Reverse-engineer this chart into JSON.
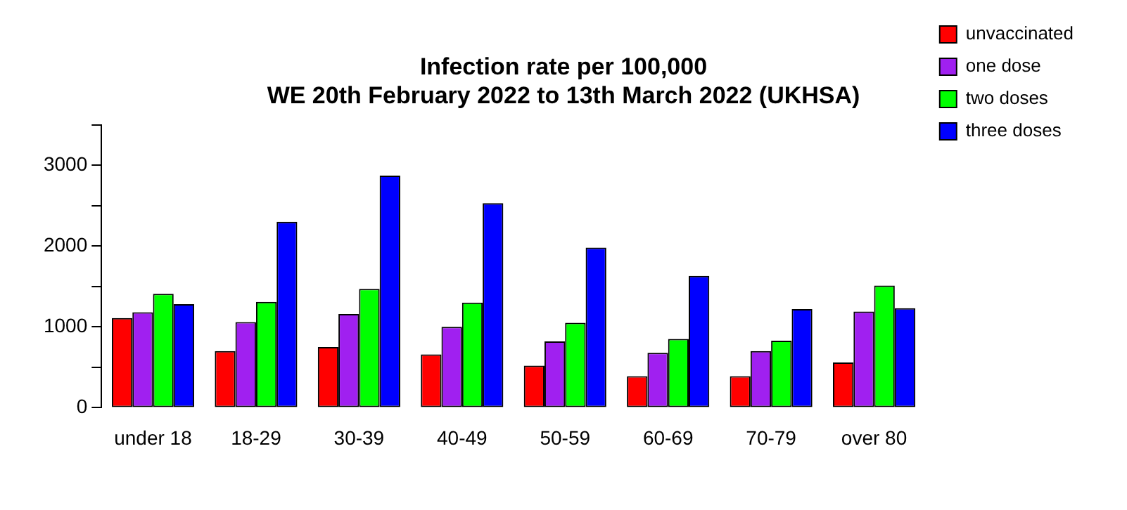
{
  "chart_data": {
    "type": "bar",
    "title": [
      "Infection rate per 100,000",
      "WE 20th February 2022 to 13th March 2022 (UKHSA)"
    ],
    "categories": [
      "under 18",
      "18-29",
      "30-39",
      "40-49",
      "50-59",
      "60-69",
      "70-79",
      "over 80"
    ],
    "series": [
      {
        "name": "unvaccinated",
        "color": "#ff0000",
        "values": [
          1110,
          700,
          750,
          660,
          520,
          390,
          390,
          560
        ]
      },
      {
        "name": "one dose",
        "color": "#a020f0",
        "values": [
          1180,
          1060,
          1160,
          1000,
          820,
          680,
          700,
          1190
        ]
      },
      {
        "name": "two doses",
        "color": "#00ff00",
        "values": [
          1410,
          1310,
          1470,
          1300,
          1050,
          850,
          830,
          1510
        ]
      },
      {
        "name": "three doses",
        "color": "#0000ff",
        "values": [
          1280,
          2300,
          2870,
          2530,
          1980,
          1630,
          1220,
          1230
        ]
      }
    ],
    "ylim": [
      0,
      3500
    ],
    "yticks": [
      0,
      {
        "value": 500,
        "label": null
      },
      1000,
      {
        "value": 1500,
        "label": null
      },
      2000,
      {
        "value": 2500,
        "label": null
      },
      3000,
      {
        "value": 3500,
        "label": null
      }
    ],
    "grid": false,
    "legend": "top right"
  }
}
